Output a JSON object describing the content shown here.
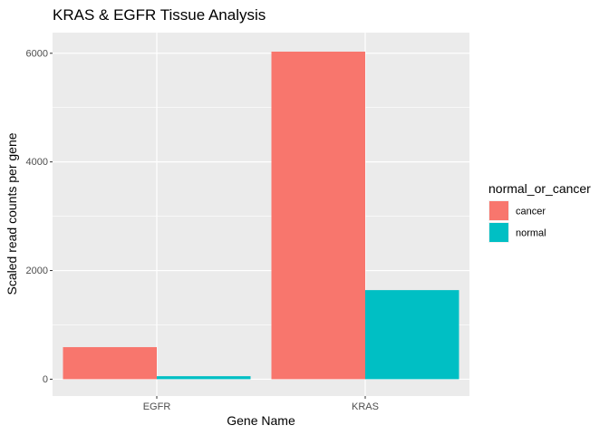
{
  "chart_data": {
    "type": "bar",
    "title": "KRAS & EGFR Tissue Analysis",
    "xlabel": "Gene Name",
    "ylabel": "Scaled read counts per gene",
    "categories": [
      "EGFR",
      "KRAS"
    ],
    "series": [
      {
        "name": "cancer",
        "values": [
          590,
          6030
        ],
        "color": "#F8766D"
      },
      {
        "name": "normal",
        "values": [
          55,
          1640
        ],
        "color": "#00BFC4"
      }
    ],
    "ylim": [
      -310,
      6380
    ],
    "yticks": [
      0,
      2000,
      4000,
      6000
    ],
    "ytick_labels": [
      "0",
      "2000",
      "4000",
      "6000"
    ],
    "y_minor_ticks": [
      1000,
      3000,
      5000
    ],
    "grid": true,
    "legend": {
      "title": "normal_or_cancer",
      "position": "right"
    },
    "panel_background": "#EBEBEB",
    "grid_color": "#FFFFFF"
  }
}
